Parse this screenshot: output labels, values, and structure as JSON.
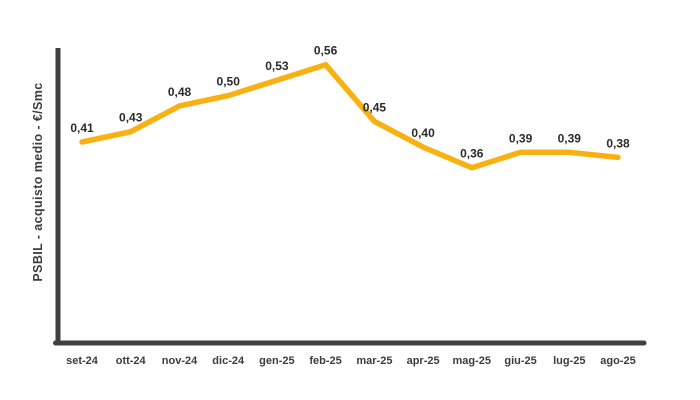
{
  "chart_data": {
    "type": "line",
    "categories": [
      "set-24",
      "ott-24",
      "nov-24",
      "dic-24",
      "gen-25",
      "feb-25",
      "mar-25",
      "apr-25",
      "mag-25",
      "giu-25",
      "lug-25",
      "ago-25"
    ],
    "values": [
      0.41,
      0.43,
      0.48,
      0.5,
      0.53,
      0.56,
      0.45,
      0.4,
      0.36,
      0.39,
      0.39,
      0.38
    ],
    "point_labels": [
      "0,41",
      "0,43",
      "0,48",
      "0,50",
      "0,53",
      "0,56",
      "0,45",
      "0,40",
      "0,36",
      "0,39",
      "0,39",
      "0,38"
    ],
    "title": "",
    "xlabel": "",
    "ylabel": "PSBIL - acquisto medio - €/Smc",
    "ylim": [
      0.02,
      0.59
    ],
    "grid": false,
    "legend": false,
    "line_color": "#F9B112",
    "axis_color": "#3F3F3F",
    "point_label_color": "#2B2B2B",
    "tick_label_color": "#3D3D3D"
  }
}
